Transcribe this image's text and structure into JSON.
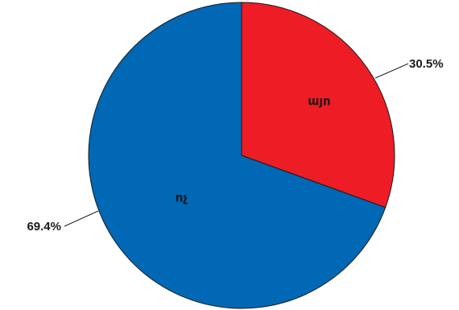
{
  "chart_data": {
    "type": "pie",
    "start_angle_deg": 0,
    "direction": "clockwise",
    "slices": [
      {
        "label": " այո",
        "value": 30.5,
        "value_label": "30.5%",
        "color": "#ee1c25"
      },
      {
        "label": "ոչ",
        "value": 69.4,
        "value_label": "69.4%",
        "color": "#0068b4"
      }
    ]
  }
}
